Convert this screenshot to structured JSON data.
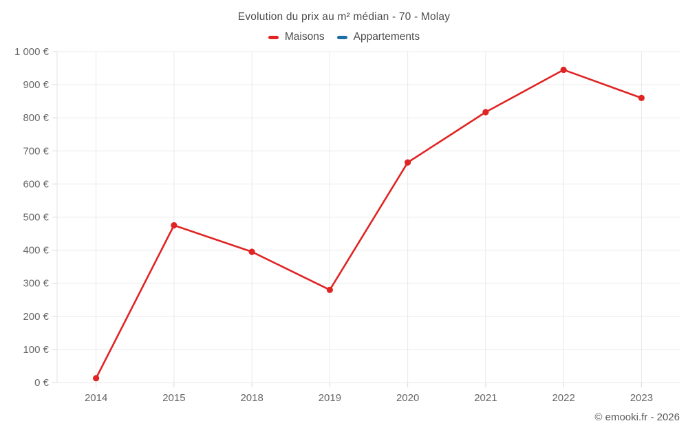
{
  "header": {
    "title": "Evolution du prix au m² médian - 70 - Molay"
  },
  "legend": {
    "items": [
      {
        "label": "Maisons",
        "color": "#e02424",
        "swatch": "red-dash"
      },
      {
        "label": "Appartements",
        "color": "#1c6ea4",
        "swatch": "blue-dash"
      }
    ]
  },
  "footer": {
    "credit": "© emooki.fr - 2026"
  },
  "chart_data": {
    "type": "line",
    "title": "Evolution du prix au m² médian - 70 - Molay",
    "categories": [
      "2014",
      "2015",
      "2018",
      "2019",
      "2020",
      "2021",
      "2022",
      "2023"
    ],
    "series": [
      {
        "name": "Maisons",
        "color": "#e02424",
        "values": [
          13,
          475,
          395,
          280,
          665,
          817,
          945,
          860
        ]
      },
      {
        "name": "Appartements",
        "color": "#1c6ea4",
        "values": []
      }
    ],
    "xlabel": "",
    "ylabel": "",
    "ylim": [
      0,
      1000
    ],
    "ytick_step": 100,
    "ytick_suffix": " €",
    "grid": true,
    "markers": true,
    "legend_position": "top"
  }
}
